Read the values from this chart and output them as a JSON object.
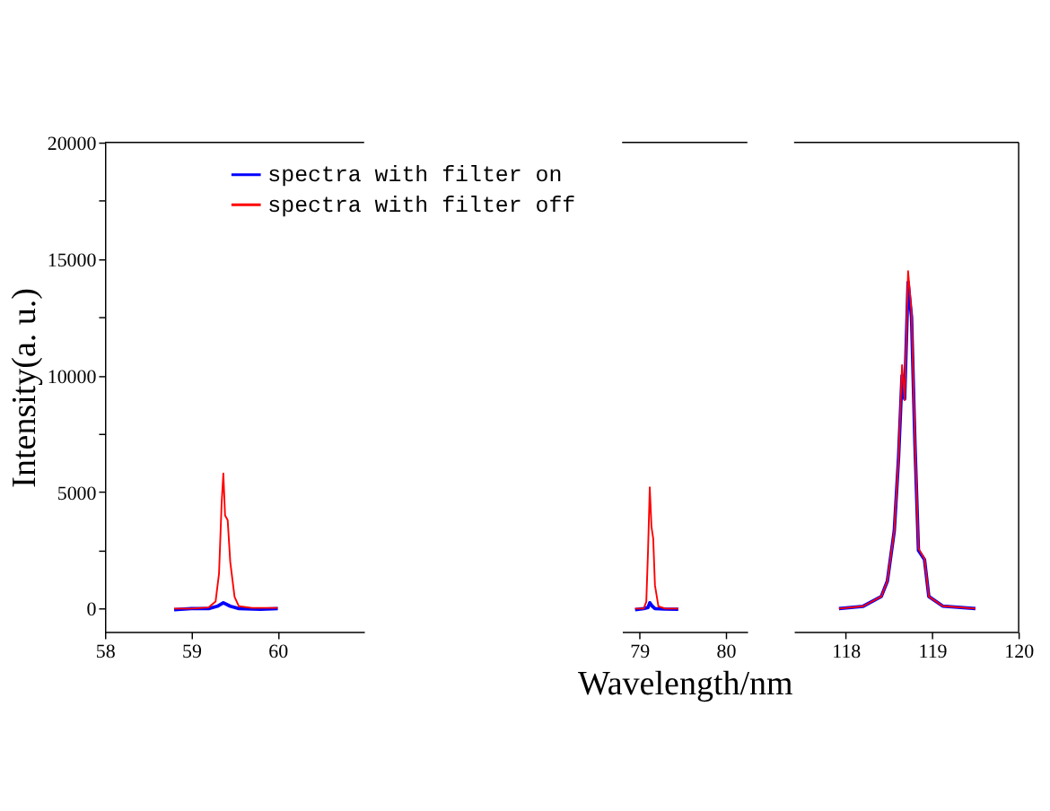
{
  "chart_data": [
    {
      "type": "line",
      "ylabel": "Intensity(a. u.)",
      "legend": "top right",
      "xlim": [
        58,
        61
      ],
      "xticks": [
        58,
        59,
        60
      ],
      "ylim": [
        -1000,
        20000
      ],
      "yticks": [
        0,
        {
          "value": 2500,
          "label": null
        },
        5000,
        {
          "value": 7500,
          "label": null
        },
        10000,
        {
          "value": 12500,
          "label": null
        },
        15000,
        {
          "value": 17500,
          "label": null
        },
        20000
      ],
      "series": [
        {
          "name": "spectra with filter on",
          "color": "#0000ff",
          "x": [
            58.8,
            59.0,
            59.2,
            59.3,
            59.37,
            59.45,
            59.55,
            59.8,
            60.0
          ],
          "values": [
            -50,
            0,
            0,
            100,
            250,
            100,
            0,
            -30,
            0
          ]
        },
        {
          "name": "spectra with filter off",
          "color": "#ff0000",
          "x": [
            58.8,
            59.0,
            59.2,
            59.28,
            59.32,
            59.35,
            59.37,
            59.39,
            59.42,
            59.45,
            59.5,
            59.55,
            59.7,
            60.0
          ],
          "values": [
            0,
            0,
            50,
            300,
            1500,
            4500,
            5800,
            4000,
            3800,
            2000,
            500,
            100,
            30,
            30
          ]
        }
      ]
    },
    {
      "type": "line",
      "xlabel": "Wavelength/nm",
      "tick_labels": "x",
      "xlim": [
        78.8,
        80.25
      ],
      "xticks": [
        79,
        80
      ],
      "ylim": [
        -1000,
        20000
      ],
      "series": [
        {
          "color": "#0000ff",
          "x": [
            78.95,
            79.05,
            79.1,
            79.12,
            79.15,
            79.18,
            79.3,
            79.45
          ],
          "values": [
            -50,
            0,
            50,
            250,
            100,
            0,
            -20,
            -30
          ]
        },
        {
          "color": "#ff0000",
          "x": [
            78.95,
            79.05,
            79.08,
            79.1,
            79.12,
            79.14,
            79.16,
            79.18,
            79.22,
            79.3,
            79.45
          ],
          "values": [
            0,
            0,
            300,
            2500,
            5200,
            3500,
            3000,
            1000,
            100,
            0,
            0
          ]
        }
      ]
    },
    {
      "type": "line",
      "tick_labels": "x",
      "xlim": [
        117.4,
        120
      ],
      "xticks": [
        118,
        119,
        120
      ],
      "ylim": [
        -1000,
        20000
      ],
      "series": [
        {
          "color": "#0000ff",
          "x": [
            117.92,
            118.2,
            118.41,
            118.48,
            118.56,
            118.61,
            118.65,
            118.68,
            118.72,
            118.76,
            118.8,
            118.84,
            118.91,
            118.96,
            119.12,
            119.5
          ],
          "values": [
            0,
            100,
            520,
            1180,
            3330,
            6500,
            10000,
            9000,
            14000,
            12500,
            7000,
            2500,
            2100,
            520,
            110,
            0
          ]
        },
        {
          "color": "#ff0000",
          "x": [
            117.92,
            118.2,
            118.41,
            118.48,
            118.56,
            118.61,
            118.65,
            118.68,
            118.72,
            118.76,
            118.8,
            118.84,
            118.91,
            118.96,
            119.12,
            119.5
          ],
          "values": [
            0,
            100,
            520,
            1180,
            3330,
            6500,
            10450,
            8950,
            14480,
            12700,
            7080,
            2580,
            2130,
            520,
            110,
            0
          ]
        }
      ]
    }
  ]
}
